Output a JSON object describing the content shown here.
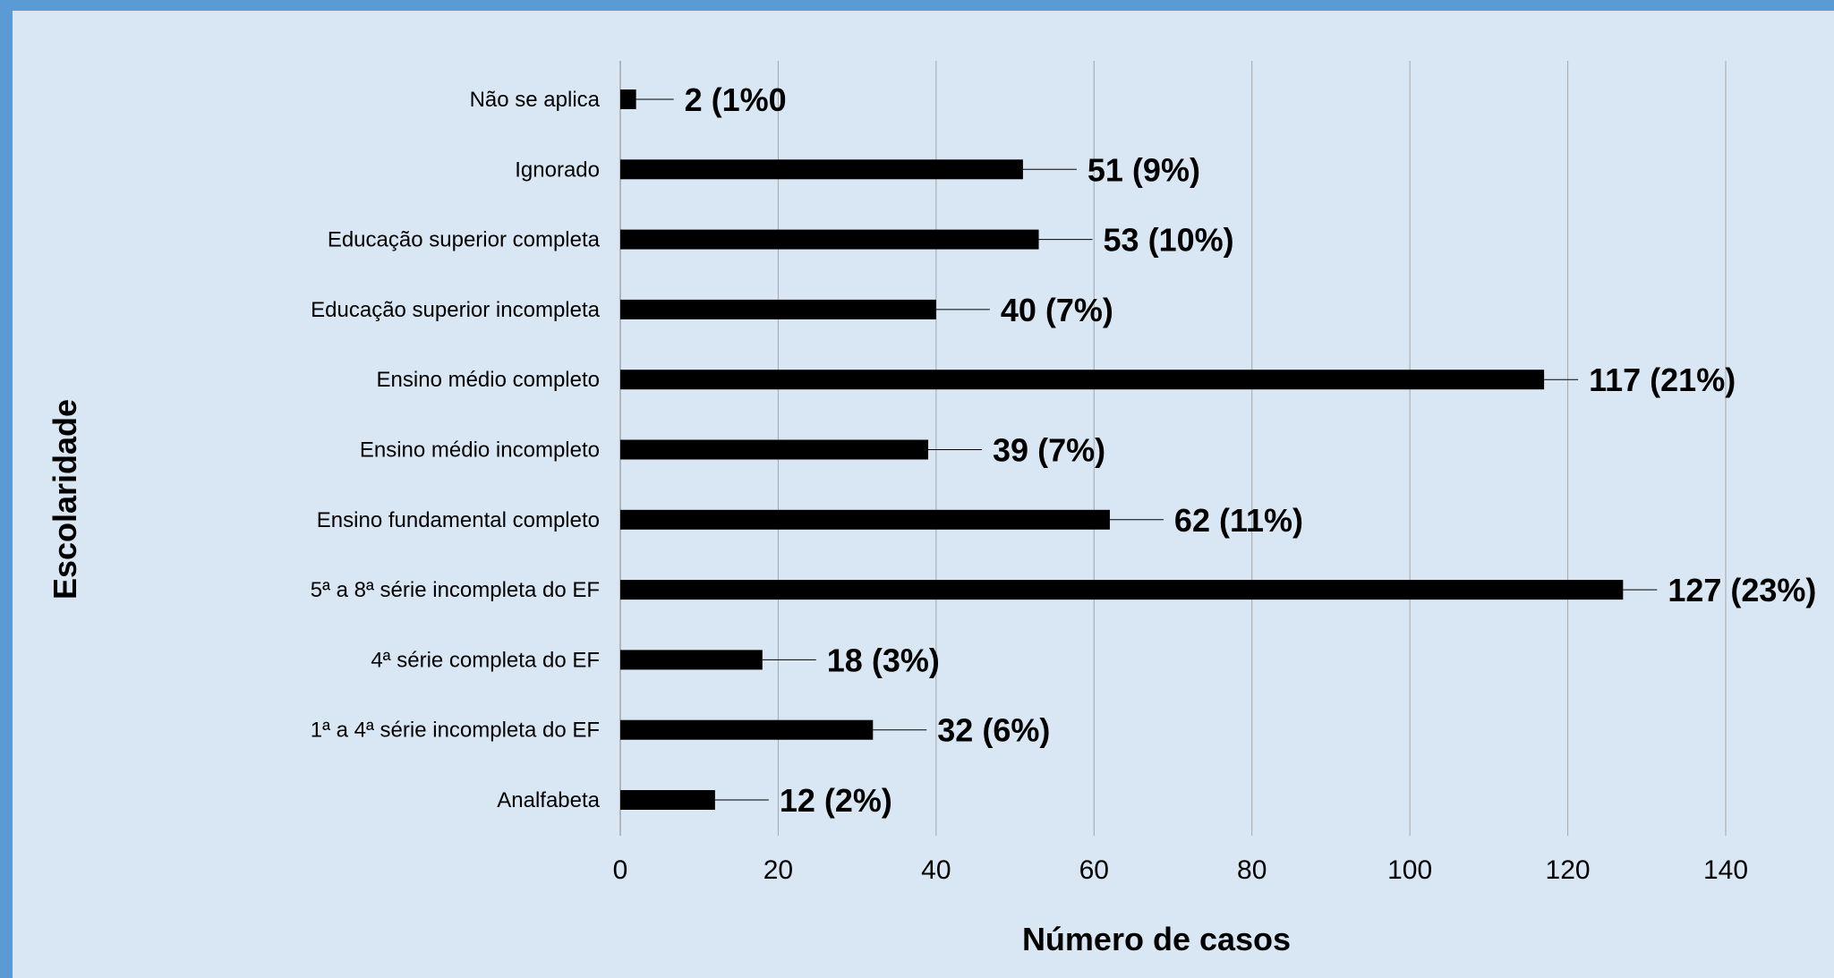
{
  "chart_data": {
    "type": "bar",
    "orientation": "horizontal",
    "title": "",
    "xlabel": "Número de casos",
    "ylabel": "Escolaridade",
    "xlim": [
      0,
      140
    ],
    "xticks": [
      "0",
      "20",
      "40",
      "60",
      "80",
      "100",
      "120",
      "140"
    ],
    "grid": "vertical",
    "categories": [
      "Não se aplica",
      "Ignorado",
      "Educação superior completa",
      "Educação superior incompleta",
      "Ensino médio completo",
      "Ensino médio incompleto",
      "Ensino fundamental completo",
      "5ª a 8ª série incompleta do EF",
      "4ª série completa do EF",
      "1ª a 4ª série incompleta do EF",
      "Analfabeta"
    ],
    "values": [
      2,
      51,
      53,
      40,
      117,
      39,
      62,
      127,
      18,
      32,
      12
    ],
    "data_labels": [
      "2 (1%0",
      "51 (9%)",
      "53 (10%)",
      "40 (7%)",
      "117 (21%)",
      "39 (7%)",
      "62 (11%)",
      "127 (23%)",
      "18 (3%)",
      "32 (6%)",
      "12 (2%)"
    ],
    "bar_color": "#000000",
    "background_color": "#d9e7f5",
    "border_color": "#5b9bd5",
    "grid_color": "#a6a6a6"
  }
}
